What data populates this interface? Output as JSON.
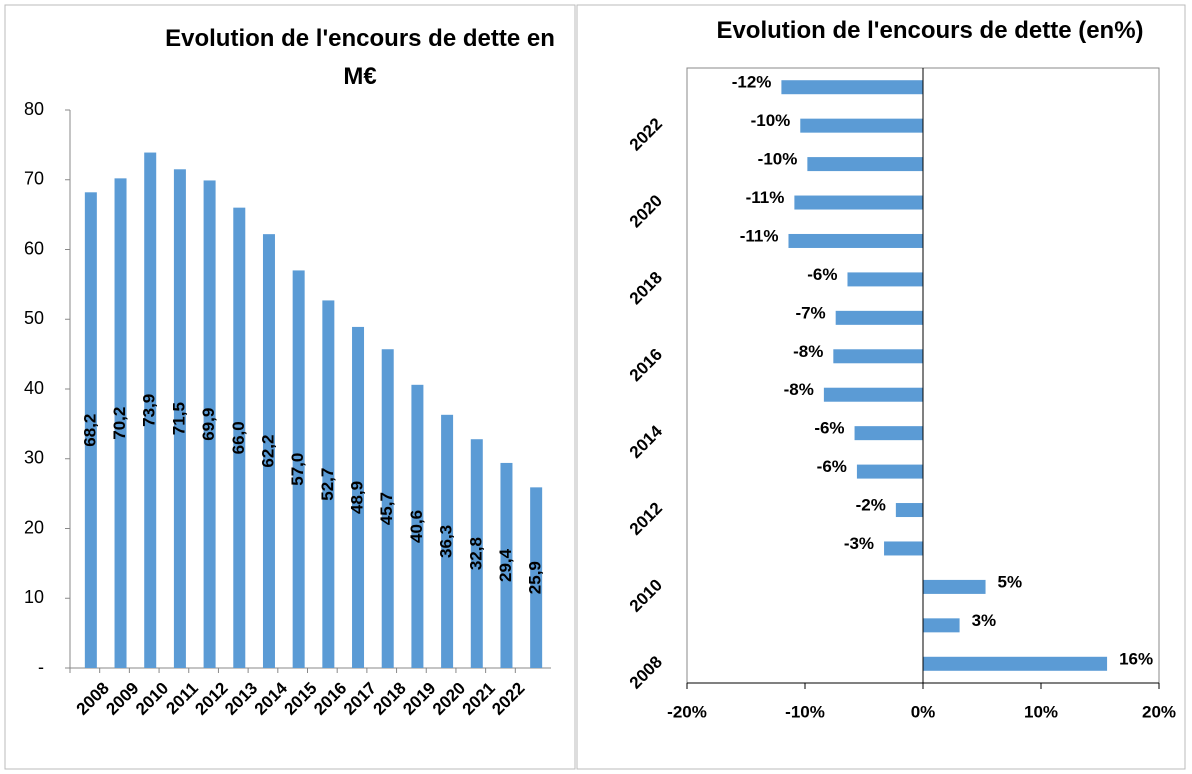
{
  "chart_data": [
    {
      "type": "bar",
      "title": "Evolution de l'encours de dette en M€",
      "categories": [
        "2008",
        "2009",
        "2010",
        "2011",
        "2012",
        "2013",
        "2014",
        "2015",
        "2016",
        "2017",
        "2018",
        "2019",
        "2020",
        "2021",
        "2022",
        null
      ],
      "values": [
        68.2,
        70.2,
        73.9,
        71.5,
        69.9,
        66.0,
        62.2,
        57.0,
        52.7,
        48.9,
        45.7,
        40.6,
        36.3,
        32.8,
        29.4,
        25.9
      ],
      "value_labels": [
        "68,2",
        "70,2",
        "73,9",
        "71,5",
        "69,9",
        "66,0",
        "62,2",
        "57,0",
        "52,7",
        "48,9",
        "45,7",
        "40,6",
        "36,3",
        "32,8",
        "29,4",
        "25,9"
      ],
      "color": "#5b9bd5",
      "ylim": [
        0,
        80
      ],
      "yticks": [
        {
          "value": 0,
          "label": "-"
        },
        10,
        20,
        30,
        40,
        50,
        60,
        70,
        80
      ]
    },
    {
      "type": "barh",
      "title": "Evolution de l'encours de dette (en%)",
      "categories": [
        "2008",
        null,
        "2010",
        null,
        "2012",
        null,
        "2014",
        null,
        "2016",
        null,
        "2018",
        null,
        "2020",
        null,
        "2022",
        null
      ],
      "values": [
        15.6,
        3.1,
        5.3,
        -3.3,
        -2.3,
        -5.6,
        -5.8,
        -8.4,
        -7.6,
        -7.4,
        -6.4,
        -11.4,
        -10.9,
        -9.8,
        -10.4,
        -12.0
      ],
      "value_labels": [
        "16%",
        "3%",
        "5%",
        "-3%",
        "-2%",
        "-6%",
        "-6%",
        "-8%",
        "-8%",
        "-7%",
        "-6%",
        "-11%",
        "-11%",
        "-10%",
        "-10%",
        "-12%"
      ],
      "color": "#5b9bd5",
      "xlim": [
        -20,
        20
      ],
      "xticks": [
        {
          "value": -20,
          "label": "-20%"
        },
        {
          "value": -10,
          "label": "-10%"
        },
        {
          "value": 0,
          "label": "0%"
        },
        {
          "value": 10,
          "label": "10%"
        },
        {
          "value": 20,
          "label": "20%"
        }
      ]
    }
  ]
}
